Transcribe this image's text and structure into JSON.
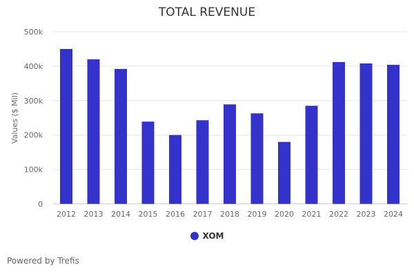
{
  "chart_data": {
    "type": "bar",
    "title": "TOTAL REVENUE",
    "xlabel": "",
    "ylabel": "Values ($ Mil)",
    "ylim": [
      0,
      500000
    ],
    "yticks": [
      0,
      100000,
      200000,
      300000,
      400000,
      500000
    ],
    "ytick_labels": [
      "0",
      "100k",
      "200k",
      "300k",
      "400k",
      "500k"
    ],
    "grid": true,
    "legend_placement": "bottom-center",
    "categories": [
      "2012",
      "2013",
      "2014",
      "2015",
      "2016",
      "2017",
      "2018",
      "2019",
      "2020",
      "2021",
      "2022",
      "2023",
      "2024"
    ],
    "series": [
      {
        "name": "XOM",
        "color": "#3333cc",
        "values": [
          450000,
          420000,
          392000,
          239000,
          200000,
          243000,
          289000,
          263000,
          180000,
          285000,
          412000,
          408000,
          404000
        ]
      }
    ]
  },
  "footer": {
    "credit": "Powered by Trefis"
  }
}
